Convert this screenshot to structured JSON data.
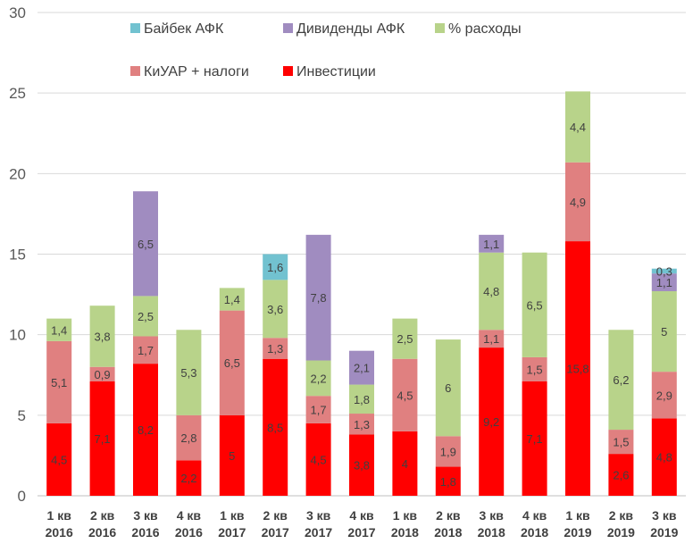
{
  "chart_data": {
    "type": "bar",
    "stacked": true,
    "categories": [
      [
        "1 кв",
        "2016"
      ],
      [
        "2 кв",
        "2016"
      ],
      [
        "3 кв",
        "2016"
      ],
      [
        "4 кв",
        "2016"
      ],
      [
        "1 кв",
        "2017"
      ],
      [
        "2 кв",
        "2017"
      ],
      [
        "3 кв",
        "2017"
      ],
      [
        "4 кв",
        "2017"
      ],
      [
        "1 кв",
        "2018"
      ],
      [
        "2 кв",
        "2018"
      ],
      [
        "3 кв",
        "2018"
      ],
      [
        "4 кв",
        "2018"
      ],
      [
        "1 кв",
        "2019"
      ],
      [
        "2 кв",
        "2019"
      ],
      [
        "3 кв",
        "2019"
      ]
    ],
    "series": [
      {
        "name": "Инвестиции",
        "color": "#ff0000",
        "values": [
          4.5,
          7.1,
          8.2,
          2.2,
          5,
          8.5,
          4.5,
          3.8,
          4,
          1.8,
          9.2,
          7.1,
          15.8,
          2.6,
          4.8
        ],
        "labels": [
          "4,5",
          "7,1",
          "8,2",
          "2,2",
          "5",
          "8,5",
          "4,5",
          "3,8",
          "4",
          "1,8",
          "9,2",
          "7,1",
          "15,8",
          "2,6",
          "4,8"
        ]
      },
      {
        "name": "КиУАР + налоги",
        "color": "#e08080",
        "values": [
          5.1,
          0.9,
          1.7,
          2.8,
          6.5,
          1.3,
          1.7,
          1.3,
          4.5,
          1.9,
          1.1,
          1.5,
          4.9,
          1.5,
          2.9
        ],
        "labels": [
          "5,1",
          "0,9",
          "1,7",
          "2,8",
          "6,5",
          "1,3",
          "1,7",
          "1,3",
          "4,5",
          "1,9",
          "1,1",
          "1,5",
          "4,9",
          "1,5",
          "2,9"
        ]
      },
      {
        "name": "% расходы",
        "color": "#b8d38a",
        "values": [
          1.4,
          3.8,
          2.5,
          5.3,
          1.4,
          3.6,
          2.2,
          1.8,
          2.5,
          6,
          4.8,
          6.5,
          4.4,
          6.2,
          5
        ],
        "labels": [
          "1,4",
          "3,8",
          "2,5",
          "5,3",
          "1,4",
          "3,6",
          "2,2",
          "1,8",
          "2,5",
          "6",
          "4,8",
          "6,5",
          "4,4",
          "6,2",
          "5"
        ]
      },
      {
        "name": "Дивиденды АФК",
        "color": "#a08cc0",
        "values": [
          0,
          0,
          6.5,
          0,
          0,
          0,
          7.8,
          2.1,
          0,
          0,
          1.1,
          0,
          0,
          0,
          1.1
        ],
        "labels": [
          "",
          "",
          "6,5",
          "",
          "",
          "",
          "7,8",
          "2,1",
          "",
          "",
          "1,1",
          "",
          "",
          "",
          "1,1"
        ]
      },
      {
        "name": "Байбек АФК",
        "color": "#72c2d0",
        "values": [
          0,
          0,
          0,
          0,
          0,
          1.6,
          0,
          0,
          0,
          0,
          0,
          0,
          0,
          0,
          0.3
        ],
        "labels": [
          "",
          "",
          "",
          "",
          "",
          "1,6",
          "",
          "",
          "",
          "",
          "",
          "",
          "",
          "",
          "0,3"
        ]
      }
    ],
    "ylim": [
      0,
      30
    ],
    "yticks": [
      0,
      5,
      10,
      15,
      20,
      25,
      30
    ],
    "grid": true,
    "legend": {
      "position": "top",
      "row1": [
        "Байбек АФК",
        "Дивиденды АФК",
        "% расходы"
      ],
      "row2": [
        "КиУАР + налоги",
        "Инвестиции"
      ]
    }
  }
}
